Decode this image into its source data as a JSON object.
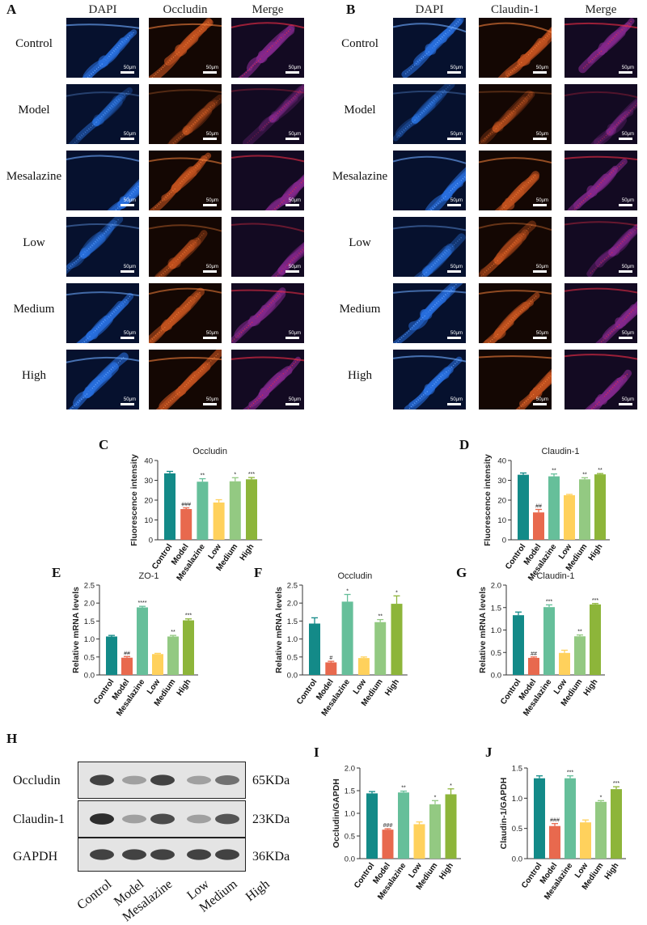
{
  "panels": {
    "A": {
      "label": "A",
      "columns": [
        "DAPI",
        "Occludin",
        "Merge"
      ]
    },
    "B": {
      "label": "B",
      "columns": [
        "DAPI",
        "Claudin-1",
        "Merge"
      ]
    },
    "rows": [
      "Control",
      "Model",
      "Mesalazine",
      "Low",
      "Medium",
      "High"
    ],
    "scale_text": "50μm",
    "brightness": [
      1.0,
      0.35,
      0.95,
      0.55,
      0.9,
      1.0
    ]
  },
  "western": {
    "label": "H",
    "rows": [
      {
        "name": "Occludin",
        "kda": "65KDa",
        "intensity": [
          0.85,
          0.35,
          0.85,
          0.35,
          0.6,
          0.65
        ]
      },
      {
        "name": "Claudin-1",
        "kda": "23KDa",
        "intensity": [
          0.95,
          0.35,
          0.8,
          0.35,
          0.75,
          0.75
        ]
      },
      {
        "name": "GAPDH",
        "kda": "36KDa",
        "intensity": [
          0.85,
          0.85,
          0.85,
          0.85,
          0.85,
          0.85
        ]
      }
    ],
    "lanes": [
      "Control",
      "Model",
      "Mesalazine",
      "Low",
      "Medium",
      "High"
    ]
  },
  "colors": [
    "#138A88",
    "#E8694E",
    "#66BF9A",
    "#FFD15C",
    "#93C982",
    "#8DB53A"
  ],
  "chart_data": [
    {
      "id": "C",
      "type": "bar",
      "title": "Occludin",
      "ylabel": "Fluorescence intensity",
      "categories": [
        "Control",
        "Model",
        "Mesalazine",
        "Low",
        "Medium",
        "High"
      ],
      "values": [
        33.5,
        15.5,
        29.3,
        18.8,
        29.5,
        30.5
      ],
      "errors": [
        1.0,
        0.6,
        1.5,
        1.4,
        1.8,
        0.9
      ],
      "annotations": [
        "",
        "###",
        "**",
        "",
        "*",
        "***"
      ],
      "ylim": [
        0,
        40
      ],
      "ticks": [
        0,
        10,
        20,
        30,
        40
      ],
      "tick_labels": [
        "0",
        "10",
        "20",
        "30",
        "40"
      ]
    },
    {
      "id": "D",
      "type": "bar",
      "title": "Claudin-1",
      "ylabel": "Fluorescence intensity",
      "categories": [
        "Control",
        "Model",
        "Mesalazine",
        "Low",
        "Medium",
        "High"
      ],
      "values": [
        32.8,
        13.8,
        32.0,
        22.5,
        30.5,
        33.0
      ],
      "errors": [
        0.9,
        1.5,
        1.2,
        0.4,
        0.8,
        0.4
      ],
      "annotations": [
        "",
        "##",
        "**",
        "",
        "**",
        "**"
      ],
      "ylim": [
        0,
        40
      ],
      "ticks": [
        0,
        10,
        20,
        30,
        40
      ],
      "tick_labels": [
        "0",
        "10",
        "20",
        "30",
        "40"
      ]
    },
    {
      "id": "E",
      "type": "bar",
      "title": "ZO-1",
      "ylabel": "Relative mRNA levels",
      "categories": [
        "Control",
        "Model",
        "Mesalazine",
        "Low",
        "Medium",
        "High"
      ],
      "values": [
        1.07,
        0.48,
        1.88,
        0.58,
        1.07,
        1.52
      ],
      "errors": [
        0.03,
        0.03,
        0.03,
        0.02,
        0.03,
        0.04
      ],
      "annotations": [
        "",
        "##",
        "****",
        "",
        "**",
        "***"
      ],
      "ylim": [
        0,
        2.5
      ],
      "ticks": [
        0,
        0.5,
        1.0,
        1.5,
        2.0,
        2.5
      ],
      "tick_labels": [
        "0.0",
        "0.5",
        "1.0",
        "1.5",
        "2.0",
        "2.5"
      ]
    },
    {
      "id": "F",
      "type": "bar",
      "title": "Occludin",
      "ylabel": "Relative mRNA levels",
      "categories": [
        "Control",
        "Model",
        "Mesalazine",
        "Low",
        "Medium",
        "High"
      ],
      "values": [
        1.43,
        0.35,
        2.04,
        0.47,
        1.47,
        1.98
      ],
      "errors": [
        0.16,
        0.03,
        0.2,
        0.03,
        0.07,
        0.22
      ],
      "annotations": [
        "",
        "#",
        "*",
        "",
        "**",
        "*"
      ],
      "ylim": [
        0,
        2.5
      ],
      "ticks": [
        0,
        0.5,
        1.0,
        1.5,
        2.0,
        2.5
      ],
      "tick_labels": [
        "0.0",
        "0.5",
        "1.0",
        "1.5",
        "2.0",
        "2.5"
      ]
    },
    {
      "id": "G",
      "type": "bar",
      "title": "Claudin-1",
      "ylabel": "Relative mRNA levels",
      "categories": [
        "Control",
        "Model",
        "Mesalazine",
        "Low",
        "Medium",
        "High"
      ],
      "values": [
        1.33,
        0.38,
        1.51,
        0.49,
        0.86,
        1.57
      ],
      "errors": [
        0.07,
        0.02,
        0.05,
        0.06,
        0.03,
        0.02
      ],
      "annotations": [
        "",
        "##",
        "***",
        "",
        "**",
        "***"
      ],
      "ylim": [
        0,
        2.0
      ],
      "ticks": [
        0,
        0.5,
        1.0,
        1.5,
        2.0
      ],
      "tick_labels": [
        "0.0",
        "0.5",
        "1.0",
        "1.5",
        "2.0"
      ]
    },
    {
      "id": "I",
      "type": "bar",
      "title": "",
      "ylabel": "Occludin/GAPDH",
      "categories": [
        "Control",
        "Model",
        "Mesalazine",
        "Low",
        "Medium",
        "High"
      ],
      "values": [
        1.44,
        0.64,
        1.46,
        0.76,
        1.2,
        1.42
      ],
      "errors": [
        0.04,
        0.02,
        0.03,
        0.05,
        0.08,
        0.12
      ],
      "annotations": [
        "",
        "###",
        "**",
        "",
        "*",
        "*"
      ],
      "ylim": [
        0,
        2.0
      ],
      "ticks": [
        0,
        0.5,
        1.0,
        1.5,
        2.0
      ],
      "tick_labels": [
        "0.0",
        "0.5",
        "1.0",
        "1.5",
        "2.0"
      ]
    },
    {
      "id": "J",
      "type": "bar",
      "title": "",
      "ylabel": "Claudin-1/GAPDH",
      "categories": [
        "Control",
        "Model",
        "Mesalazine",
        "Low",
        "Medium",
        "High"
      ],
      "values": [
        1.33,
        0.54,
        1.33,
        0.6,
        0.94,
        1.15
      ],
      "errors": [
        0.04,
        0.04,
        0.04,
        0.04,
        0.02,
        0.04
      ],
      "annotations": [
        "",
        "###",
        "***",
        "",
        "*",
        "***"
      ],
      "ylim": [
        0,
        1.5
      ],
      "ticks": [
        0,
        0.5,
        1.0,
        1.5
      ],
      "tick_labels": [
        "0.0",
        "0.5",
        "1.0",
        "1.5"
      ]
    }
  ]
}
